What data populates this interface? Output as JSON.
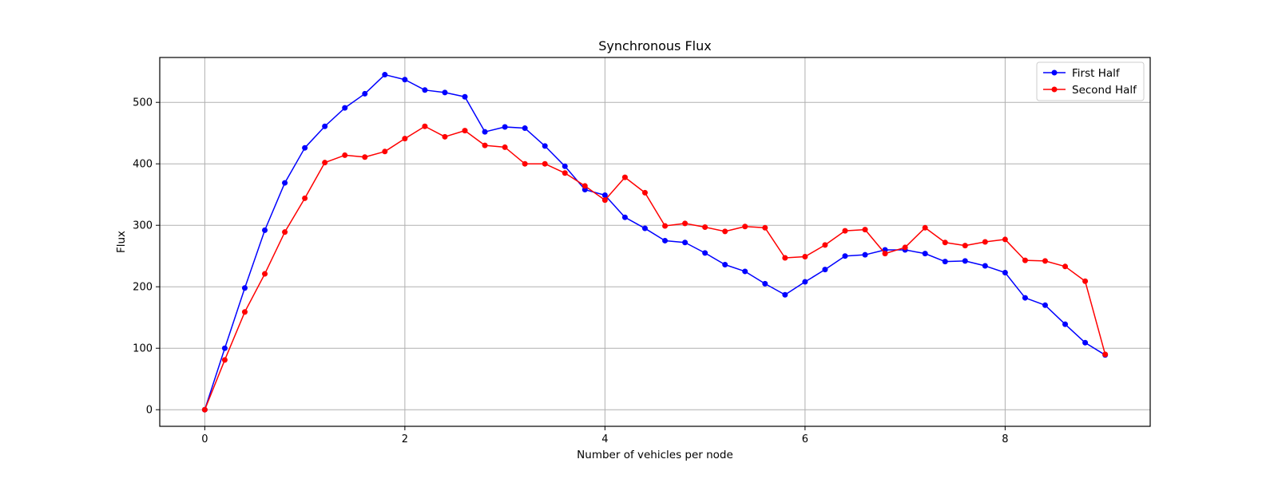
{
  "chart_data": {
    "type": "line",
    "title": "Synchronous Flux",
    "xlabel": "Number of vehicles per node",
    "ylabel": "Flux",
    "xlim": [
      -0.45,
      9.45
    ],
    "ylim": [
      -27,
      573
    ],
    "xticks": [
      0,
      2,
      4,
      6,
      8
    ],
    "yticks": [
      0,
      100,
      200,
      300,
      400,
      500
    ],
    "grid": true,
    "legend_position": "upper right",
    "x": [
      0,
      0.2,
      0.4,
      0.6,
      0.8,
      1.0,
      1.2,
      1.4,
      1.6,
      1.8,
      2.0,
      2.2,
      2.4,
      2.6,
      2.8,
      3.0,
      3.2,
      3.4,
      3.6,
      3.8,
      4.0,
      4.2,
      4.4,
      4.6,
      4.8,
      5.0,
      5.2,
      5.4,
      5.6,
      5.8,
      6.0,
      6.2,
      6.4,
      6.6,
      6.8,
      7.0,
      7.2,
      7.4,
      7.6,
      7.8,
      8.0,
      8.2,
      8.4,
      8.6,
      8.8,
      9.0
    ],
    "series": [
      {
        "name": "First Half",
        "color": "#0000ff",
        "values": [
          0,
          100,
          198,
          292,
          369,
          426,
          461,
          491,
          514,
          545,
          537,
          520,
          516,
          509,
          452,
          460,
          458,
          429,
          396,
          358,
          349,
          313,
          295,
          275,
          272,
          255,
          236,
          225,
          205,
          187,
          208,
          228,
          250,
          252,
          260,
          260,
          254,
          241,
          242,
          234,
          223,
          182,
          170,
          139,
          109,
          89
        ]
      },
      {
        "name": "Second Half",
        "color": "#ff0000",
        "values": [
          0,
          81,
          159,
          221,
          289,
          344,
          402,
          414,
          411,
          420,
          441,
          461,
          444,
          454,
          430,
          427,
          400,
          400,
          385,
          364,
          341,
          378,
          353,
          299,
          303,
          297,
          290,
          298,
          296,
          247,
          249,
          268,
          291,
          293,
          254,
          264,
          296,
          272,
          267,
          273,
          277,
          243,
          242,
          233,
          209,
          90
        ]
      }
    ]
  }
}
